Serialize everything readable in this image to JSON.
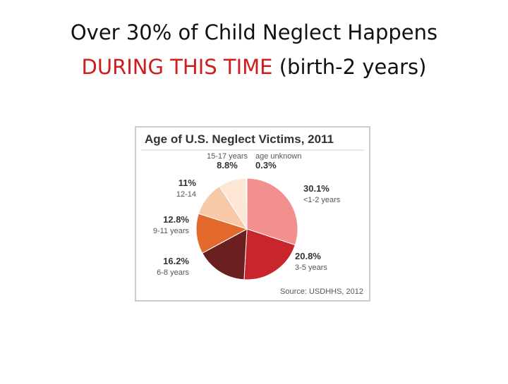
{
  "slide": {
    "title_line1": "Over 30% of Child Neglect Happens",
    "title_highlight": "DURING THIS TIME",
    "title_rest": "(birth-2 years)"
  },
  "chart_data": {
    "type": "pie",
    "title": "Age of U.S. Neglect Victims, 2011",
    "source": "Source: USDHHS, 2012",
    "categories": [
      "<1-2 years",
      "3-5 years",
      "6-8 years",
      "9-11 years",
      "12-14",
      "15-17 years",
      "age unknown"
    ],
    "values": [
      30.1,
      20.8,
      16.2,
      12.8,
      11,
      8.8,
      0.3
    ],
    "value_labels": [
      "30.1%",
      "20.8%",
      "16.2%",
      "12.8%",
      "11%",
      "8.8%",
      "0.3%"
    ],
    "colors": [
      "#f1908f",
      "#c9252c",
      "#6b1f1f",
      "#e2682b",
      "#f7c9a8",
      "#fde6d6",
      "#ffffff"
    ]
  }
}
